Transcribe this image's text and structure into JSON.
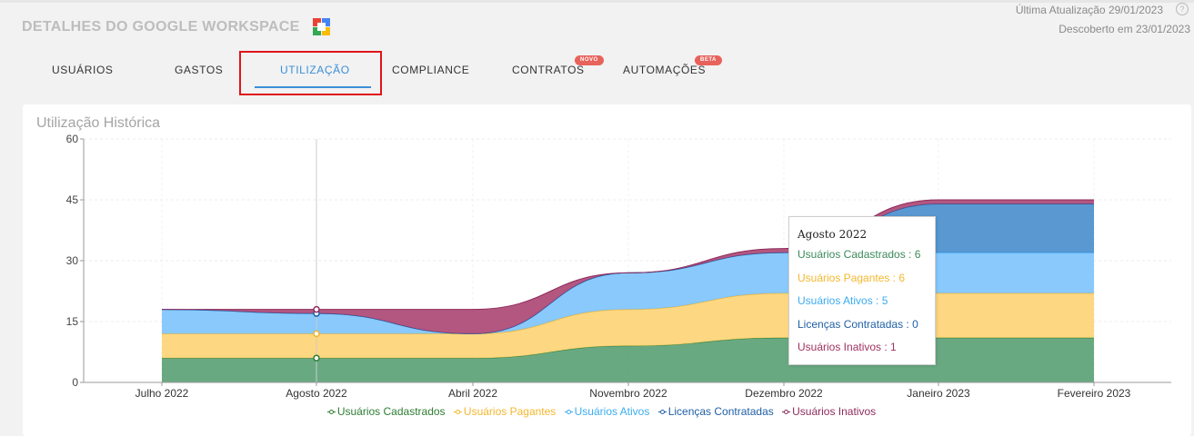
{
  "header": {
    "title": "DETALHES DO GOOGLE WORKSPACE",
    "last_update": "Última Atualização 29/01/2023",
    "discovered": "Descoberto em 23/01/2023"
  },
  "tabs": [
    {
      "label": "USUÁRIOS"
    },
    {
      "label": "GASTOS"
    },
    {
      "label": "UTILIZAÇÃO",
      "active": true
    },
    {
      "label": "COMPLIANCE"
    },
    {
      "label": "CONTRATOS",
      "badge": "NOVO"
    },
    {
      "label": "AUTOMAÇÕES",
      "badge": "BETA"
    }
  ],
  "colors": {
    "accent": "#3a8fd6",
    "highlight": "#e0151b",
    "badge": "#e8625c"
  },
  "chart_data": {
    "type": "area",
    "stacked": true,
    "title": "Utilização Histórica",
    "categories": [
      "Julho 2022",
      "Agosto 2022",
      "Abril 2022",
      "Novembro 2022",
      "Dezembro 2022",
      "Janeiro 2023",
      "Fevereiro 2023"
    ],
    "ylim": [
      0,
      60
    ],
    "yticks": [
      0,
      15,
      30,
      45,
      60
    ],
    "series": [
      {
        "name": "Usuários Cadastrados",
        "color": "#4f9a6c",
        "stroke": "#2e7d32",
        "values": [
          6,
          6,
          6,
          9,
          11,
          11,
          11
        ]
      },
      {
        "name": "Usuários Pagantes",
        "color": "#fdd06b",
        "stroke": "#f2b32b",
        "values": [
          6,
          6,
          6,
          9,
          11,
          11,
          11
        ]
      },
      {
        "name": "Usuários Ativos",
        "color": "#74c0fb",
        "stroke": "#3cacef",
        "values": [
          6,
          5,
          0,
          9,
          10,
          10,
          10
        ]
      },
      {
        "name": "Licenças Contratadas",
        "color": "#3c86c9",
        "stroke": "#1f5fa5",
        "values": [
          0,
          0,
          0,
          0,
          0,
          12,
          12
        ]
      },
      {
        "name": "Usuários Inativos",
        "color": "#a63a6b",
        "stroke": "#8e2b5c",
        "values": [
          0,
          1,
          6,
          0,
          1,
          1,
          1
        ]
      }
    ],
    "legend": "bottom",
    "tooltip": {
      "title": "Agosto 2022",
      "lines": [
        {
          "text": "Usuários Cadastrados : 6",
          "color": "#3c8a5a"
        },
        {
          "text": "Usuários Pagantes : 6",
          "color": "#f4b72e"
        },
        {
          "text": "Usuários Ativos : 5",
          "color": "#3cacef"
        },
        {
          "text": "Licenças Contratadas : 0",
          "color": "#1f5fa5"
        },
        {
          "text": "Usuários Inativos : 1",
          "color": "#a0325f"
        }
      ]
    }
  }
}
